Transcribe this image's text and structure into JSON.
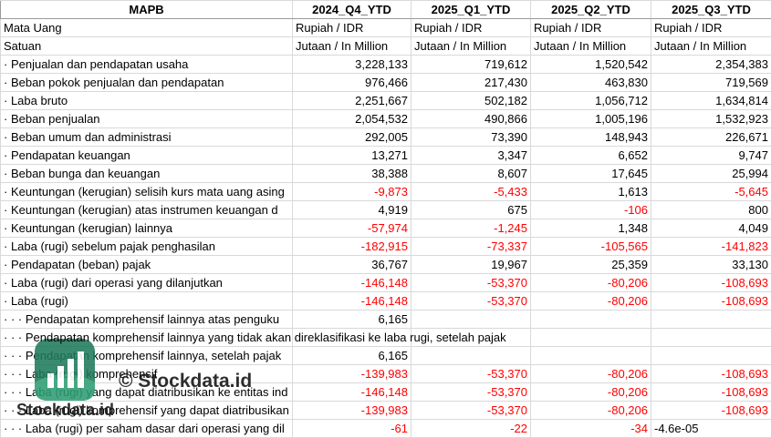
{
  "header": [
    "MAPB",
    "2024_Q4_YTD",
    "2025_Q1_YTD",
    "2025_Q2_YTD",
    "2025_Q3_YTD"
  ],
  "rows": [
    [
      "Mata Uang",
      "Rupiah / IDR",
      "Rupiah / IDR",
      "Rupiah / IDR",
      "Rupiah / IDR"
    ],
    [
      "Satuan",
      "Jutaan / In Million",
      "Jutaan / In Million",
      "Jutaan / In Million",
      "Jutaan / In Million"
    ],
    [
      "· Penjualan dan pendapatan usaha",
      "3,228,133",
      "719,612",
      "1,520,542",
      "2,354,383"
    ],
    [
      "· Beban pokok penjualan dan pendapatan",
      "976,466",
      "217,430",
      "463,830",
      "719,569"
    ],
    [
      "· Laba bruto",
      "2,251,667",
      "502,182",
      "1,056,712",
      "1,634,814"
    ],
    [
      "· Beban penjualan",
      "2,054,532",
      "490,866",
      "1,005,196",
      "1,532,923"
    ],
    [
      "· Beban umum dan administrasi",
      "292,005",
      "73,390",
      "148,943",
      "226,671"
    ],
    [
      "· Pendapatan keuangan",
      "13,271",
      "3,347",
      "6,652",
      "9,747"
    ],
    [
      "· Beban bunga dan keuangan",
      "38,388",
      "8,607",
      "17,645",
      "25,994"
    ],
    [
      "· Keuntungan (kerugian) selisih kurs mata uang asing",
      "-9,873",
      "-5,433",
      "1,613",
      "-5,645"
    ],
    [
      "· Keuntungan (kerugian) atas instrumen keuangan d",
      "4,919",
      "675",
      "-106",
      "800"
    ],
    [
      "· Keuntungan (kerugian) lainnya",
      "-57,974",
      "-1,245",
      "1,348",
      "4,049"
    ],
    [
      "· Laba (rugi) sebelum pajak penghasilan",
      "-182,915",
      "-73,337",
      "-105,565",
      "-141,823"
    ],
    [
      "· Pendapatan (beban) pajak",
      "36,767",
      "19,967",
      "25,359",
      "33,130"
    ],
    [
      "· Laba (rugi) dari operasi yang dilanjutkan",
      "-146,148",
      "-53,370",
      "-80,206",
      "-108,693"
    ],
    [
      "· Laba (rugi)",
      "-146,148",
      "-53,370",
      "-80,206",
      "-108,693"
    ],
    [
      "· · · Pendapatan komprehensif lainnya atas penguku",
      "6,165",
      null,
      null,
      null
    ],
    [
      "· · · Pendapatan komprehensif lainnya yang tidak akan direklasifikasi ke laba rugi, setelah pajak",
      null,
      null,
      null,
      null
    ],
    [
      "· · · Pendapatan komprehensif lainnya, setelah pajak",
      "6,165",
      null,
      null,
      null
    ],
    [
      "· · · Laba (rugi) komprehensif",
      "-139,983",
      "-53,370",
      "-80,206",
      "-108,693"
    ],
    [
      "· · · Laba (rugi) yang dapat diatribusikan ke entitas ind",
      "-146,148",
      "-53,370",
      "-80,206",
      "-108,693"
    ],
    [
      "· · · Laba (rugi) komprehensif yang dapat diatribusikan",
      "-139,983",
      "-53,370",
      "-80,206",
      "-108,693"
    ],
    [
      "· · · Laba (rugi) per saham dasar dari operasi yang dil",
      "-61",
      "-22",
      "-34",
      "-4.6e-05"
    ]
  ],
  "watermark": {
    "caption": "© Stockdata.id",
    "logo_text": "Stockdata.id"
  }
}
